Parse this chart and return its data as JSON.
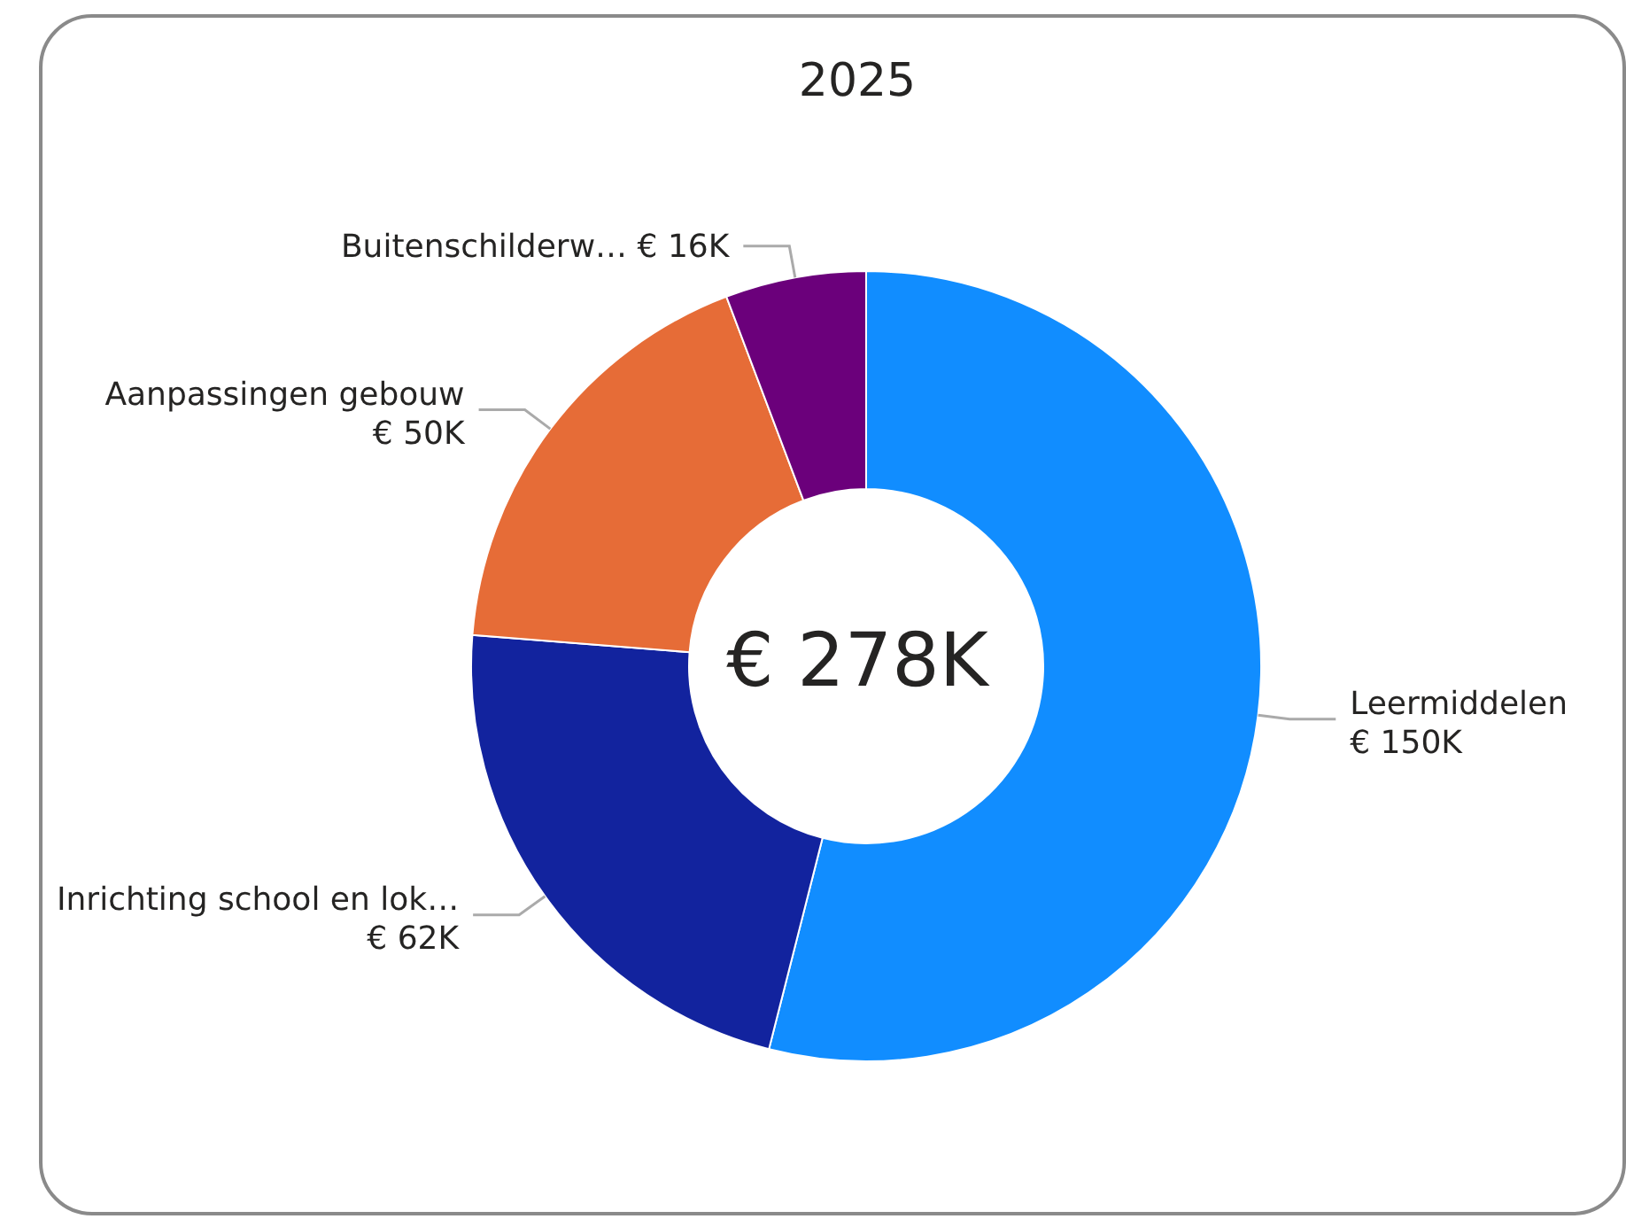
{
  "chart_data": {
    "type": "donut",
    "title": "2025",
    "categories": [
      "Leermiddelen",
      "Inrichting school en lok…",
      "Aanpassingen gebouw",
      "Buitenschilderw…"
    ],
    "values": [
      150,
      62,
      50,
      16
    ],
    "value_labels": [
      "€ 150K",
      "€ 62K",
      "€ 50K",
      "€ 16K"
    ],
    "colors": [
      "#118dff",
      "#12239e",
      "#e66c37",
      "#6b007b"
    ],
    "annotations": [
      "€ 278K"
    ],
    "legend": false
  }
}
